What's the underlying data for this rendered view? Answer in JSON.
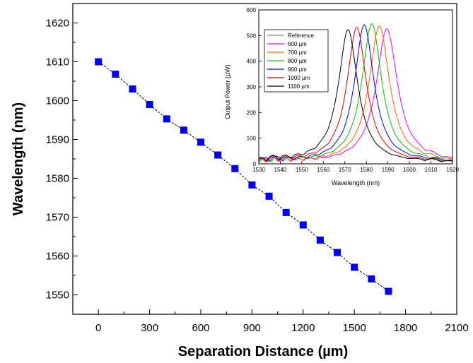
{
  "chart_data": [
    {
      "type": "line",
      "xlabel": "Separation Distance (µm)",
      "ylabel": "Wavelength (nm)",
      "xlim": [
        -150,
        2100
      ],
      "ylim": [
        1545,
        1625
      ],
      "xticks": [
        "0",
        "300",
        "600",
        "900",
        "1200",
        "1500",
        "1800",
        "2100"
      ],
      "yticks": [
        "1550",
        "1560",
        "1570",
        "1580",
        "1590",
        "1600",
        "1610",
        "1620"
      ],
      "marker": "square",
      "marker_color": "#0000ff",
      "line_color": "#000000",
      "series": [
        {
          "x": [
            0,
            100,
            200,
            300,
            400,
            500,
            600,
            700,
            800,
            900,
            1000,
            1100,
            1200,
            1300,
            1400,
            1500,
            1600,
            1700
          ],
          "y": [
            1610.0,
            1606.8,
            1603.0,
            1599.0,
            1595.3,
            1592.4,
            1589.3,
            1586.0,
            1582.5,
            1578.3,
            1575.4,
            1571.2,
            1568.0,
            1564.1,
            1560.9,
            1557.1,
            1554.1,
            1550.9
          ]
        }
      ]
    },
    {
      "type": "line",
      "xlabel": "Wavelength (nm)",
      "ylabel": "Output Power (µW)",
      "xlim": [
        1530,
        1620
      ],
      "ylim": [
        0,
        600
      ],
      "xticks": [
        "1530",
        "1540",
        "1550",
        "1560",
        "1570",
        "1580",
        "1590",
        "1600",
        "1610",
        "1620"
      ],
      "yticks": [
        "0",
        "100",
        "200",
        "300",
        "400",
        "500",
        "600"
      ],
      "legend_position": "top-left",
      "series": [
        {
          "name": "Reference",
          "color": "#888888",
          "reference_level": 600
        },
        {
          "name": "600 µm",
          "color": "#ff00ff",
          "peak_x": 1589.5,
          "peak_y": 525,
          "width": 6.0
        },
        {
          "name": "700 µm",
          "color": "#ff6600",
          "peak_x": 1586.0,
          "peak_y": 535,
          "width": 5.8
        },
        {
          "name": "800 µm",
          "color": "#00cc00",
          "peak_x": 1582.5,
          "peak_y": 545,
          "width": 5.6
        },
        {
          "name": "900 µm",
          "color": "#0000ff",
          "peak_x": 1579.0,
          "peak_y": 540,
          "width": 5.5
        },
        {
          "name": "1000 µm",
          "color": "#dd0000",
          "peak_x": 1575.5,
          "peak_y": 530,
          "width": 5.5
        },
        {
          "name": "1100 µm",
          "color": "#000000",
          "peak_x": 1571.5,
          "peak_y": 520,
          "width": 5.5
        }
      ]
    }
  ]
}
